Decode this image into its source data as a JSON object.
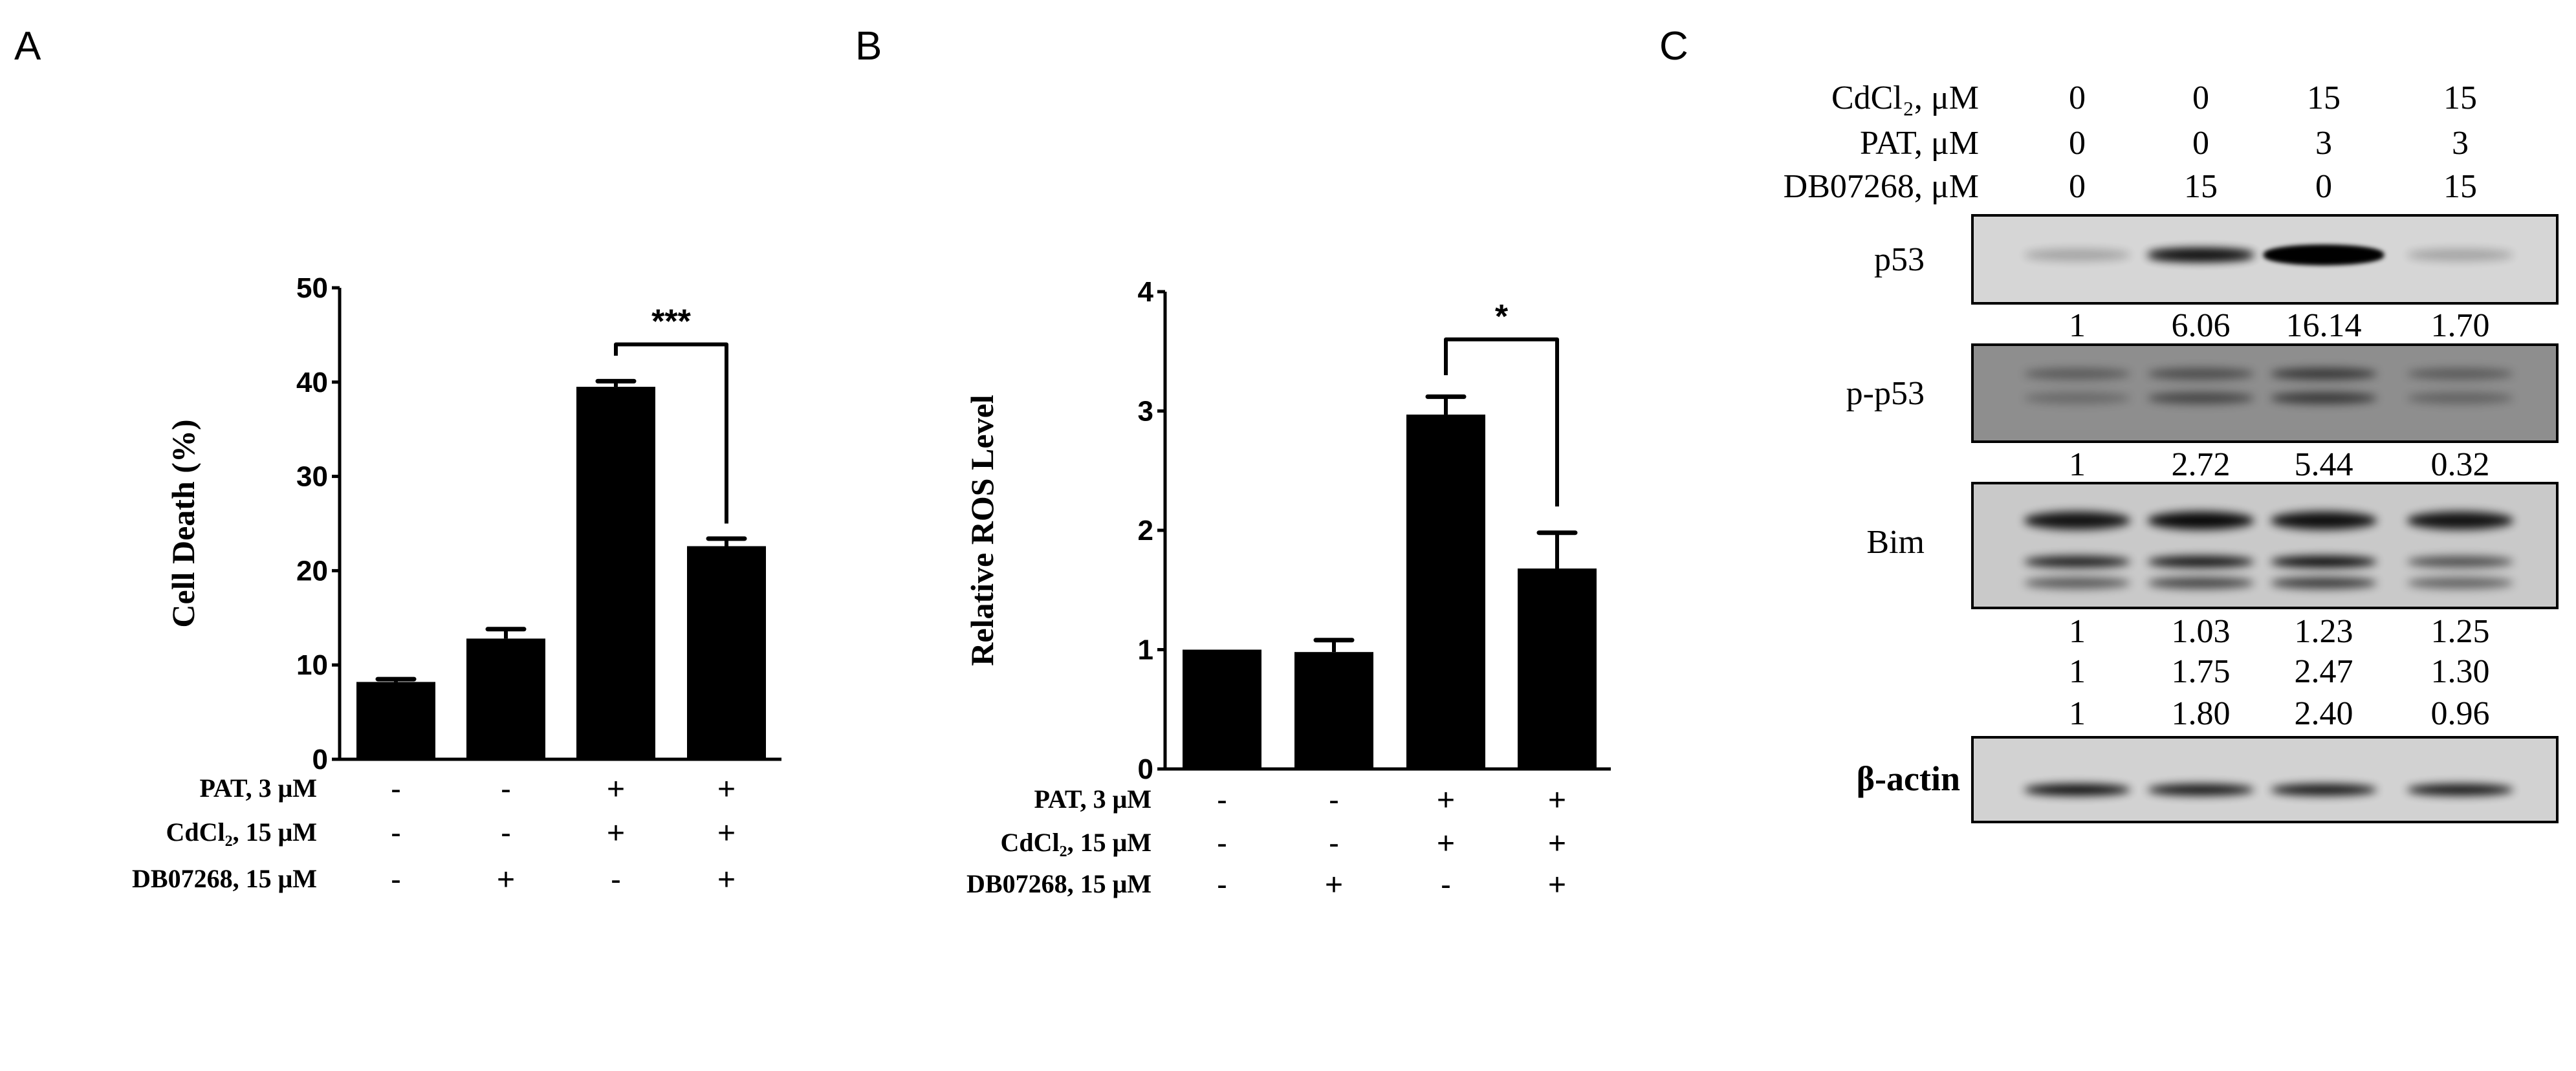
{
  "panels": {
    "a": "A",
    "b": "B",
    "c": "C"
  },
  "chart_data": [
    {
      "type": "bar",
      "panel": "A",
      "ylabel": "Cell Death (%)",
      "ylim": [
        0,
        50
      ],
      "yticks": [
        "0",
        "10",
        "20",
        "30",
        "40",
        "50"
      ],
      "values": [
        8.2,
        12.8,
        39.5,
        22.6
      ],
      "errors": [
        0.3,
        1.0,
        0.6,
        0.8
      ],
      "significance": {
        "between": [
          3,
          4
        ],
        "label": "***"
      },
      "treatments": [
        {
          "label": "PAT, 3 μM",
          "signs": [
            "-",
            "-",
            "+",
            "+"
          ]
        },
        {
          "label": "CdCl₂, 15 μM",
          "signs": [
            "-",
            "-",
            "+",
            "+"
          ]
        },
        {
          "label": "DB07268, 15 μM",
          "signs": [
            "-",
            "+",
            "-",
            "+"
          ]
        }
      ],
      "bar_color": "#000000"
    },
    {
      "type": "bar",
      "panel": "B",
      "ylabel": "Relative ROS Level",
      "ylim": [
        0,
        4
      ],
      "yticks": [
        "0",
        "1",
        "2",
        "3",
        "4"
      ],
      "values": [
        1.0,
        0.98,
        2.97,
        1.68
      ],
      "errors": [
        0.0,
        0.1,
        0.15,
        0.3
      ],
      "significance": {
        "between": [
          3,
          4
        ],
        "label": "*"
      },
      "treatments": [
        {
          "label": "PAT, 3 μM",
          "signs": [
            "-",
            "-",
            "+",
            "+"
          ]
        },
        {
          "label": "CdCl₂, 15 μM",
          "signs": [
            "-",
            "-",
            "+",
            "+"
          ]
        },
        {
          "label": "DB07268, 15 μM",
          "signs": [
            "-",
            "+",
            "-",
            "+"
          ]
        }
      ],
      "bar_color": "#000000"
    }
  ],
  "western_blot": {
    "conditions": [
      {
        "label": "CdCl₂, μM",
        "values": [
          "0",
          "0",
          "15",
          "15"
        ]
      },
      {
        "label": "PAT, μM",
        "values": [
          "0",
          "0",
          "3",
          "3"
        ]
      },
      {
        "label": "DB07268,  μM",
        "values": [
          "0",
          "15",
          "0",
          "15"
        ]
      }
    ],
    "blots": [
      {
        "label": "p53",
        "quant": [
          [
            "1",
            "6.06",
            "16.14",
            "1.70"
          ]
        ]
      },
      {
        "label": "p-p53",
        "quant": [
          [
            "1",
            "2.72",
            "5.44",
            "0.32"
          ]
        ]
      },
      {
        "label": "Bim",
        "quant": [
          [
            "1",
            "1.03",
            "1.23",
            "1.25"
          ],
          [
            "1",
            "1.75",
            "2.47",
            "1.30"
          ],
          [
            "1",
            "1.80",
            "2.40",
            "0.96"
          ]
        ]
      },
      {
        "label": "β-actin",
        "quant": []
      }
    ]
  }
}
